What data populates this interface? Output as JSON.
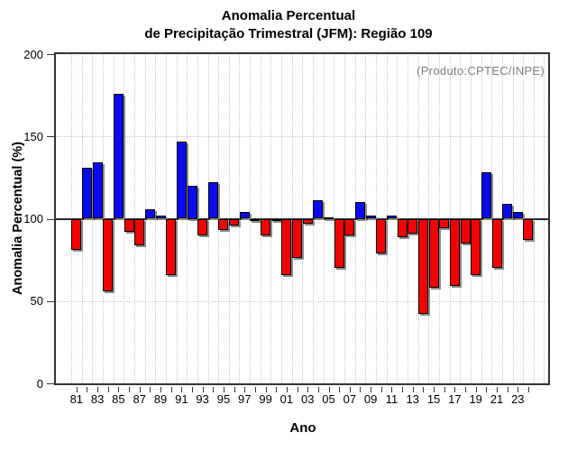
{
  "title": {
    "line1": "Anomalia Percentual",
    "line2": "de Precipitação Trimestral (JFM): Região 109"
  },
  "annotation": "(Produto:CPTEC/INPE)",
  "chart_data": {
    "type": "bar",
    "x": [
      "81",
      "82",
      "83",
      "84",
      "85",
      "86",
      "87",
      "88",
      "89",
      "90",
      "91",
      "92",
      "93",
      "94",
      "95",
      "96",
      "97",
      "98",
      "99",
      "00",
      "01",
      "02",
      "03",
      "04",
      "05",
      "06",
      "07",
      "08",
      "09",
      "10",
      "11",
      "12",
      "13",
      "14",
      "15",
      "16",
      "17",
      "18",
      "19",
      "20",
      "21",
      "22",
      "23",
      "24"
    ],
    "values": [
      81,
      131,
      134,
      56,
      176,
      92,
      84,
      106,
      102,
      66,
      147,
      120,
      90,
      122,
      93,
      96,
      104,
      99,
      90,
      100,
      66,
      76,
      97,
      111,
      101,
      70,
      90,
      110,
      102,
      79,
      102,
      89,
      91,
      42,
      58,
      94,
      59,
      85,
      66,
      128,
      70,
      109,
      104,
      87
    ],
    "baseline": 100,
    "title": "Anomalia Percentual de Precipitação Trimestral (JFM): Região 109",
    "xlabel": "Ano",
    "ylabel": "Anomalia Percentual (%)",
    "ylim": [
      0,
      200
    ],
    "yticks": [
      0,
      50,
      100,
      150,
      200
    ],
    "xtick_labels": [
      "81",
      "83",
      "85",
      "87",
      "89",
      "91",
      "93",
      "95",
      "97",
      "99",
      "01",
      "03",
      "05",
      "07",
      "09",
      "11",
      "13",
      "15",
      "17",
      "19",
      "21",
      "23"
    ],
    "grid": "dotted",
    "legend_position": "none",
    "colors": {
      "above_baseline": "#0a0af0",
      "below_baseline": "#f50000",
      "bar_outline": "#000000",
      "bar_shadow": "#8c8c8c",
      "grid": "#c9c9c9",
      "annotation_text": "#7e7e7e"
    }
  }
}
